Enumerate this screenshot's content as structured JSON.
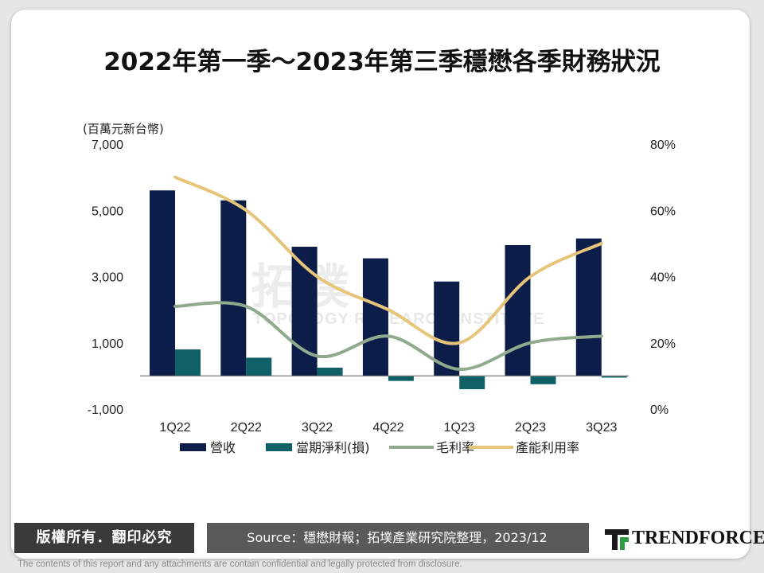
{
  "title": "2022年第一季～2023年第三季穩懋各季財務狀況",
  "footer": {
    "copyright": "版權所有．翻印必究",
    "source": "Source：穩懋財報；拓墣產業研究院整理，2023/12",
    "logo_text": "TRENDFORCE",
    "disclaimer": "The contents of this report and any attachments are contain confidential and legally protected from disclosure."
  },
  "watermark": {
    "main": "拓墣",
    "sub": "TOPOLOGY RESEARCH INSTITUTE"
  },
  "chart_data": {
    "type": "bar",
    "unit_label": "(百萬元新台幣)",
    "categories": [
      "1Q22",
      "2Q22",
      "3Q22",
      "4Q22",
      "1Q23",
      "2Q23",
      "3Q23"
    ],
    "y_left": {
      "min": -1000,
      "max": 7000,
      "ticks": [
        -1000,
        1000,
        3000,
        5000,
        7000
      ],
      "tick_labels": [
        "-1,000",
        "1,000",
        "3,000",
        "5,000",
        "7,000"
      ]
    },
    "y_right": {
      "min": 0,
      "max": 80,
      "ticks": [
        0,
        20,
        40,
        60,
        80
      ],
      "tick_labels": [
        "0%",
        "20%",
        "40%",
        "60%",
        "80%"
      ]
    },
    "series": [
      {
        "name": "營收",
        "type": "bar",
        "axis": "left",
        "color": "#0d1d4a",
        "values": [
          5600,
          5300,
          3900,
          3550,
          2850,
          3950,
          4150
        ]
      },
      {
        "name": "當期淨利(損)",
        "type": "bar",
        "axis": "left",
        "color": "#0f6067",
        "values": [
          800,
          550,
          250,
          -150,
          -400,
          -250,
          -50
        ]
      },
      {
        "name": "毛利率",
        "type": "line",
        "axis": "right",
        "color": "#8faa8c",
        "values": [
          31,
          31,
          16,
          22,
          12,
          20,
          22
        ]
      },
      {
        "name": "產能利用率",
        "type": "line",
        "axis": "right",
        "color": "#e6c57a",
        "values": [
          70,
          60,
          40,
          30,
          20,
          40,
          50
        ]
      }
    ],
    "legend_position": "bottom",
    "grid": false
  }
}
